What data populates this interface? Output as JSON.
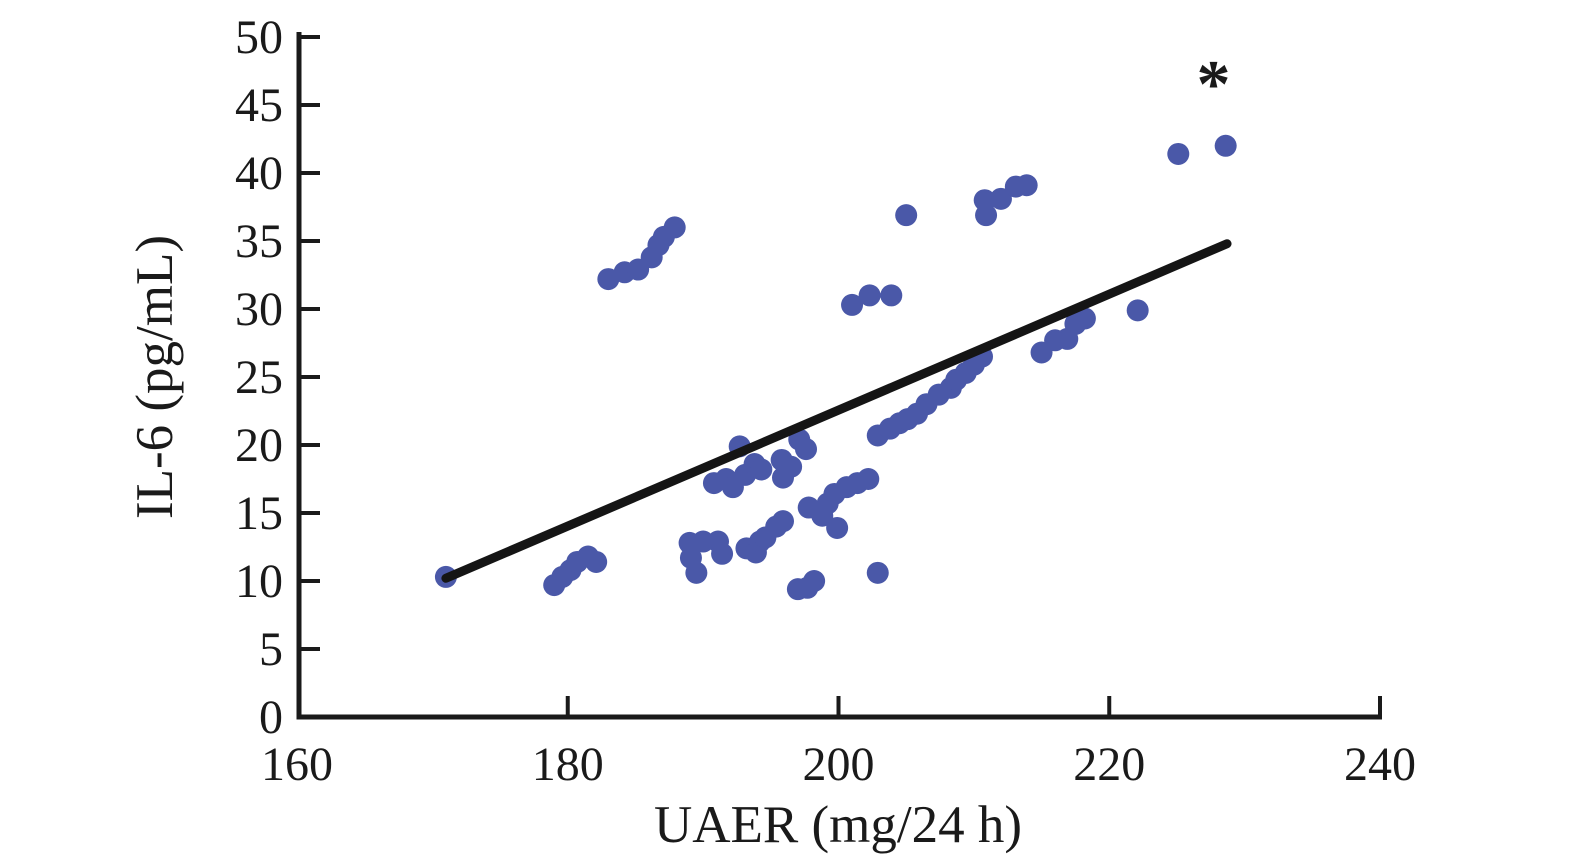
{
  "chart_data": {
    "type": "scatter",
    "title": "",
    "xlabel": "UAER (mg/24 h)",
    "ylabel": "IL-6 (pg/mL)",
    "xlim": [
      160,
      240
    ],
    "ylim": [
      0,
      50
    ],
    "xticks": [
      160,
      180,
      200,
      220,
      240
    ],
    "yticks": [
      0,
      5,
      10,
      15,
      20,
      25,
      30,
      35,
      40,
      45,
      50
    ],
    "grid": false,
    "legend": "none",
    "marker_color": "#4a58a8",
    "trend_color": "#151515",
    "axis_color": "#1a1a1a",
    "annotation": {
      "text": "*",
      "x": 227.7,
      "y": 46.5
    },
    "trendline": {
      "x1": 171.0,
      "y1": 10.2,
      "x2": 228.7,
      "y2": 34.8
    },
    "points": [
      [
        171.0,
        10.3
      ],
      [
        179.0,
        9.7
      ],
      [
        179.6,
        10.3
      ],
      [
        180.2,
        10.8
      ],
      [
        180.7,
        11.4
      ],
      [
        181.5,
        11.8
      ],
      [
        182.1,
        11.4
      ],
      [
        183.0,
        32.2
      ],
      [
        184.2,
        32.7
      ],
      [
        185.2,
        32.9
      ],
      [
        186.2,
        33.8
      ],
      [
        186.7,
        34.7
      ],
      [
        187.1,
        35.3
      ],
      [
        187.9,
        36.0
      ],
      [
        189.0,
        12.8
      ],
      [
        190.0,
        12.9
      ],
      [
        191.1,
        12.9
      ],
      [
        189.1,
        11.7
      ],
      [
        191.4,
        12.0
      ],
      [
        189.5,
        10.6
      ],
      [
        193.2,
        12.4
      ],
      [
        193.9,
        12.1
      ],
      [
        194.2,
        12.9
      ],
      [
        194.6,
        13.2
      ],
      [
        195.4,
        14.0
      ],
      [
        195.9,
        14.4
      ],
      [
        197.0,
        9.4
      ],
      [
        197.7,
        9.5
      ],
      [
        198.2,
        10.0
      ],
      [
        197.8,
        15.4
      ],
      [
        198.8,
        14.8
      ],
      [
        199.2,
        15.7
      ],
      [
        199.9,
        13.9
      ],
      [
        199.7,
        16.4
      ],
      [
        200.6,
        16.9
      ],
      [
        201.4,
        17.2
      ],
      [
        202.2,
        17.5
      ],
      [
        190.8,
        17.2
      ],
      [
        191.7,
        17.5
      ],
      [
        192.2,
        16.9
      ],
      [
        192.7,
        19.9
      ],
      [
        193.1,
        17.8
      ],
      [
        193.8,
        18.6
      ],
      [
        194.3,
        18.2
      ],
      [
        195.8,
        18.9
      ],
      [
        196.5,
        18.4
      ],
      [
        195.9,
        17.6
      ],
      [
        197.1,
        20.4
      ],
      [
        197.6,
        19.7
      ],
      [
        201.0,
        30.3
      ],
      [
        202.3,
        31.0
      ],
      [
        203.9,
        31.0
      ],
      [
        205.0,
        36.9
      ],
      [
        202.9,
        20.7
      ],
      [
        203.8,
        21.2
      ],
      [
        204.5,
        21.6
      ],
      [
        205.1,
        21.9
      ],
      [
        205.8,
        22.3
      ],
      [
        206.5,
        23.0
      ],
      [
        207.4,
        23.7
      ],
      [
        208.3,
        24.2
      ],
      [
        208.7,
        24.8
      ],
      [
        209.4,
        25.3
      ],
      [
        210.0,
        25.9
      ],
      [
        210.6,
        26.5
      ],
      [
        202.9,
        10.6
      ],
      [
        210.8,
        38.0
      ],
      [
        210.9,
        36.9
      ],
      [
        212.0,
        38.1
      ],
      [
        213.1,
        39.0
      ],
      [
        213.9,
        39.1
      ],
      [
        215.0,
        26.8
      ],
      [
        216.0,
        27.7
      ],
      [
        216.9,
        27.8
      ],
      [
        217.5,
        28.9
      ],
      [
        218.2,
        29.3
      ],
      [
        222.1,
        29.9
      ],
      [
        225.1,
        41.4
      ],
      [
        228.6,
        42.0
      ]
    ]
  }
}
